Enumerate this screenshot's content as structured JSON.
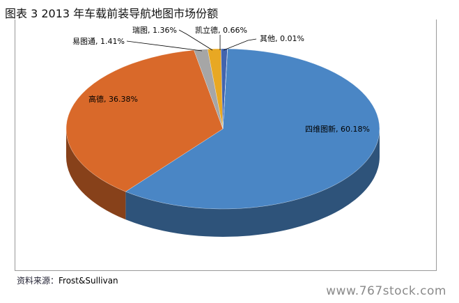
{
  "chart_data": {
    "type": "pie",
    "title": "图表  3 2013 年车载前装导航地图市场份额",
    "style": "3d",
    "slices": [
      {
        "label": "四维图新",
        "value": 60.18,
        "display": "四维图新, 60.18%",
        "color": "#4a86c5"
      },
      {
        "label": "高德",
        "value": 36.38,
        "display": "高德, 36.38%",
        "color": "#d9692a"
      },
      {
        "label": "易图通",
        "value": 1.41,
        "display": "易图通, 1.41%",
        "color": "#a6a6a6"
      },
      {
        "label": "瑞图",
        "value": 1.36,
        "display": "瑞图, 1.36%",
        "color": "#e8a823"
      },
      {
        "label": "凯立德",
        "value": 0.66,
        "display": "凯立德, 0.66%",
        "color": "#4264ae"
      },
      {
        "label": "其他",
        "value": 0.01,
        "display": "其他, 0.01%",
        "color": "#7da7d8"
      }
    ]
  },
  "source": {
    "prefix": "资料来源：",
    "name": "Frost&Sullivan"
  },
  "watermark": "www.767stock.com"
}
